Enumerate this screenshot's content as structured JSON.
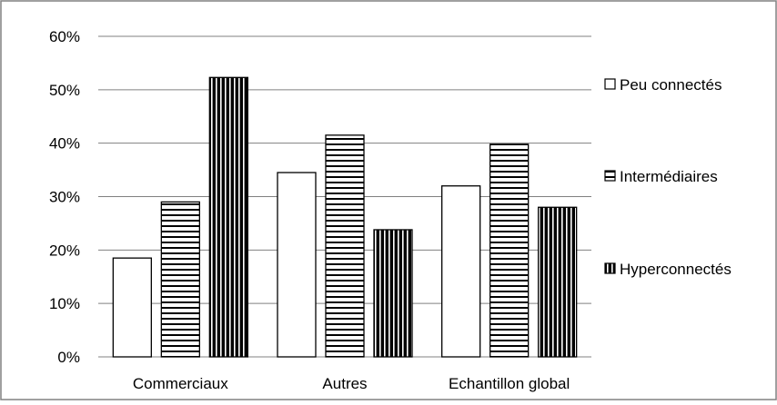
{
  "chart_data": {
    "type": "bar",
    "title": "",
    "xlabel": "",
    "ylabel": "",
    "categories": [
      "Commerciaux",
      "Autres",
      "Echantillon global"
    ],
    "ylim": [
      0,
      60
    ],
    "yticks": [
      "0%",
      "10%",
      "20%",
      "30%",
      "40%",
      "50%",
      "60%"
    ],
    "y_unit": "%",
    "grid": "horizontal",
    "legend_position": "right",
    "series": [
      {
        "name": "Peu connectés",
        "values": [
          18.5,
          34.5,
          32
        ],
        "fill": "white"
      },
      {
        "name": "Intermédiaires",
        "values": [
          29,
          41.5,
          39.8
        ],
        "fill": "horizontal-stripes"
      },
      {
        "name": "Hyperconnectés",
        "values": [
          52.3,
          23.8,
          28
        ],
        "fill": "vertical-stripes"
      }
    ],
    "colors": {
      "stroke": "#000000",
      "grid": "#808080",
      "frame": "#808080"
    }
  }
}
